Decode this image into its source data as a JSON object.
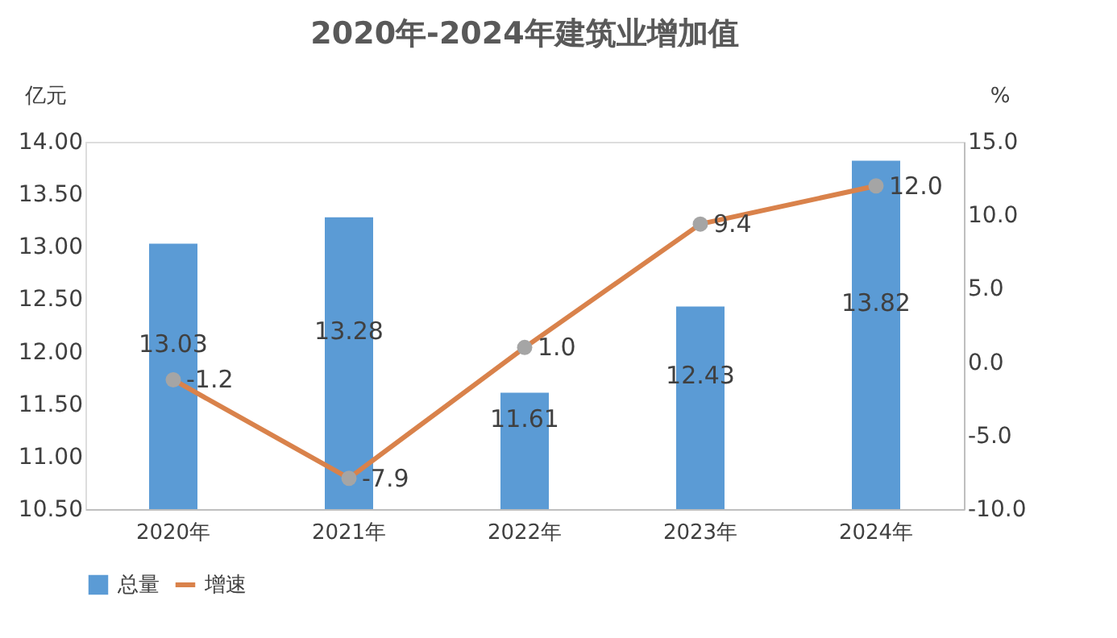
{
  "chart_data": {
    "type": "bar",
    "title": "2020年-2024年建筑业增加值",
    "categories": [
      "2020年",
      "2021年",
      "2022年",
      "2023年",
      "2024年"
    ],
    "ylabel": "亿元",
    "y2label": "%",
    "ylim": [
      10.5,
      14.0
    ],
    "yticks": [
      {
        "value": 10.5,
        "label": "10.50"
      },
      {
        "value": 11.0,
        "label": "11.00"
      },
      {
        "value": 11.5,
        "label": "11.50"
      },
      {
        "value": 12.0,
        "label": "12.00"
      },
      {
        "value": 12.5,
        "label": "12.50"
      },
      {
        "value": 13.0,
        "label": "13.00"
      },
      {
        "value": 13.5,
        "label": "13.50"
      },
      {
        "value": 14.0,
        "label": "14.00"
      }
    ],
    "y2lim": [
      -10,
      15
    ],
    "y2ticks": [
      {
        "value": -10,
        "label": "-10.0"
      },
      {
        "value": -5,
        "label": "-5.0"
      },
      {
        "value": 0,
        "label": "0.0"
      },
      {
        "value": 5,
        "label": "5.0"
      },
      {
        "value": 10,
        "label": "10.0"
      },
      {
        "value": 15,
        "label": "15.0"
      }
    ],
    "series": [
      {
        "name": "总量",
        "color": "#5b9bd5",
        "values": [
          13.03,
          13.28,
          11.61,
          12.43,
          13.82
        ],
        "value_labels": [
          "13.03",
          "13.28",
          "11.61",
          "12.43",
          "13.82"
        ]
      },
      {
        "name": "增速",
        "type": "line",
        "axis": "y2",
        "color": "#d9824b",
        "marker": "circle",
        "values": [
          -1.2,
          -7.9,
          1.0,
          9.4,
          12.0
        ],
        "value_labels": [
          "-1.2",
          "-7.9",
          "1.0",
          "9.4",
          "12.0"
        ]
      }
    ],
    "legend": "bottom",
    "grid": false
  }
}
